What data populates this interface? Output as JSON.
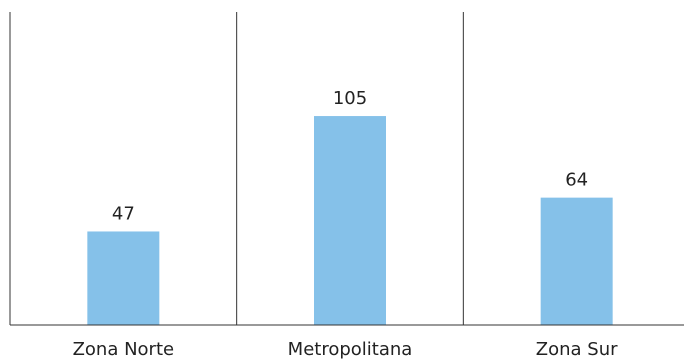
{
  "chart_data": {
    "type": "bar",
    "categories": [
      "Zona Norte",
      "Metropolitana",
      "Zona Sur"
    ],
    "values": [
      47,
      105,
      64
    ],
    "title": "",
    "xlabel": "",
    "ylabel": "",
    "ylim": [
      0,
      160
    ],
    "grid": false,
    "legend": "none",
    "bar_color": "#85C1E9",
    "axis_color": "#333333",
    "text_color": "#222222"
  }
}
